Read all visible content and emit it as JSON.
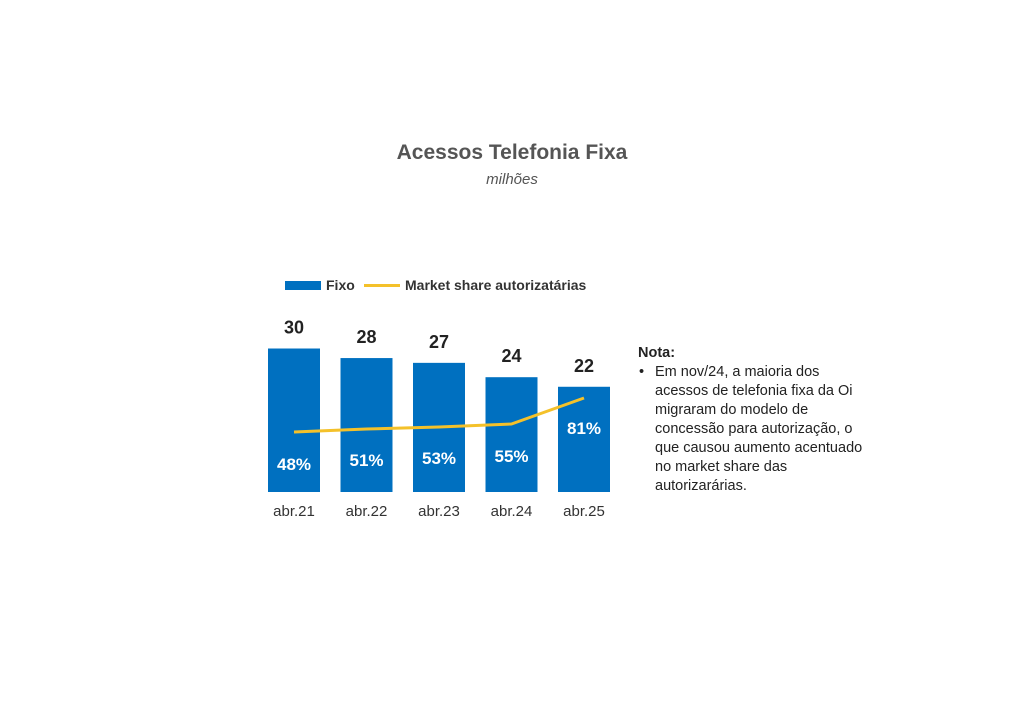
{
  "chart_data": {
    "type": "bar",
    "title": "Acessos Telefonia Fixa",
    "subtitle": "milhões",
    "categories": [
      "abr.21",
      "abr.22",
      "abr.23",
      "abr.24",
      "abr.25"
    ],
    "series": [
      {
        "name": "Fixo",
        "kind": "bar",
        "values": [
          30,
          28,
          27,
          24,
          22
        ],
        "color": "#0070C0"
      },
      {
        "name": "Market share autorizatárias",
        "kind": "line",
        "values": [
          48,
          51,
          53,
          55,
          81
        ],
        "labels": [
          "48%",
          "51%",
          "53%",
          "55%",
          "81%"
        ],
        "color": "#F4C12A"
      }
    ],
    "legend": "top-left"
  },
  "note": {
    "title": "Nota:",
    "bullet": "•",
    "text": "Em nov/24, a maioria dos acessos de telefonia fixa da Oi migraram do modelo de concessão para autorização, o que causou aumento acentuado no market share das autorizarárias."
  }
}
